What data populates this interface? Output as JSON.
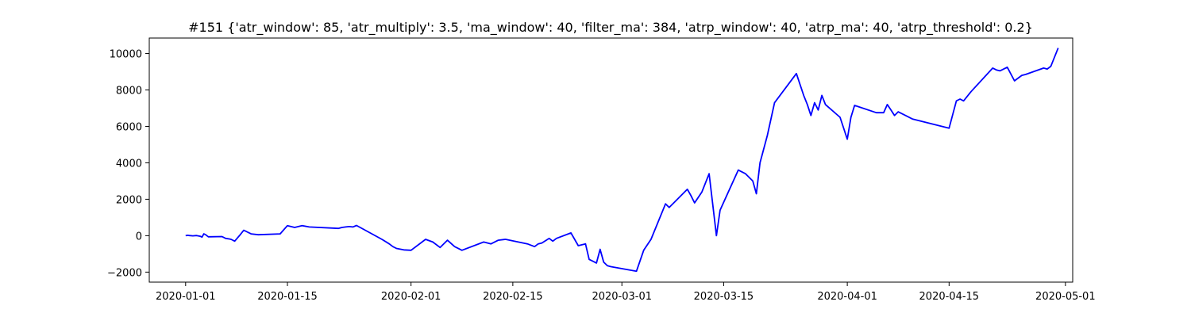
{
  "chart_data": {
    "type": "line",
    "title": "#151 {'atr_window': 85, 'atr_multiply': 3.5, 'ma_window': 40, 'filter_ma': 384, 'atrp_window': 40, 'atrp_ma': 40, 'atrp_threshold': 0.2}",
    "xlabel": "",
    "ylabel": "",
    "xlim": [
      "2019-12-27",
      "2020-05-02"
    ],
    "ylim": [
      -2550,
      10850
    ],
    "grid": false,
    "line_color": "#0000ff",
    "x_ticks": [
      "2020-01-01",
      "2020-01-15",
      "2020-02-01",
      "2020-02-15",
      "2020-03-01",
      "2020-03-15",
      "2020-04-01",
      "2020-04-15",
      "2020-05-01"
    ],
    "y_ticks": [
      -2000,
      0,
      2000,
      4000,
      6000,
      8000,
      10000
    ],
    "x": [
      "2020-01-01",
      "2020-01-01T06:00",
      "2020-01-01T12:00",
      "2020-01-02",
      "2020-01-02T12:00",
      "2020-01-03",
      "2020-01-03T06:00",
      "2020-01-03T12:00",
      "2020-01-03T18:00",
      "2020-01-04T03:00",
      "2020-01-06",
      "2020-01-06T12:00",
      "2020-01-07",
      "2020-01-07T06:00",
      "2020-01-07T18:00",
      "2020-01-08T12:00",
      "2020-01-09",
      "2020-01-10",
      "2020-01-11",
      "2020-01-14",
      "2020-01-15",
      "2020-01-16",
      "2020-01-17",
      "2020-01-18",
      "2020-01-22",
      "2020-01-22T12:00",
      "2020-01-23",
      "2020-01-23T12:00",
      "2020-01-24",
      "2020-01-24T12:00",
      "2020-01-25",
      "2020-01-28",
      "2020-01-29",
      "2020-01-29T12:00",
      "2020-01-30",
      "2020-01-31",
      "2020-02-01",
      "2020-02-03",
      "2020-02-04",
      "2020-02-05",
      "2020-02-06",
      "2020-02-07",
      "2020-02-08",
      "2020-02-11",
      "2020-02-12",
      "2020-02-13",
      "2020-02-14",
      "2020-02-17",
      "2020-02-18",
      "2020-02-18T12:00",
      "2020-02-19",
      "2020-02-20",
      "2020-02-20T12:00",
      "2020-02-21",
      "2020-02-23",
      "2020-02-24",
      "2020-02-25",
      "2020-02-25T12:00",
      "2020-02-26",
      "2020-02-26T12:00",
      "2020-02-27",
      "2020-02-27T12:00",
      "2020-02-28",
      "2020-02-28T12:00",
      "2020-03-03",
      "2020-03-04",
      "2020-03-05",
      "2020-03-07",
      "2020-03-07T12:00",
      "2020-03-10",
      "2020-03-10T12:00",
      "2020-03-11",
      "2020-03-12",
      "2020-03-13",
      "2020-03-14",
      "2020-03-14T12:00",
      "2020-03-17",
      "2020-03-18",
      "2020-03-19",
      "2020-03-19T12:00",
      "2020-03-20",
      "2020-03-21",
      "2020-03-22",
      "2020-03-25",
      "2020-03-26",
      "2020-03-26T12:00",
      "2020-03-27",
      "2020-03-27T12:00",
      "2020-03-28",
      "2020-03-28T12:00",
      "2020-03-29",
      "2020-03-31",
      "2020-04-01",
      "2020-04-01T12:00",
      "2020-04-02",
      "2020-04-05",
      "2020-04-06",
      "2020-04-06T12:00",
      "2020-04-07",
      "2020-04-07T12:00",
      "2020-04-08",
      "2020-04-10",
      "2020-04-15",
      "2020-04-16",
      "2020-04-16T12:00",
      "2020-04-17",
      "2020-04-18",
      "2020-04-21",
      "2020-04-21T12:00",
      "2020-04-22",
      "2020-04-23",
      "2020-04-24",
      "2020-04-25",
      "2020-04-25T12:00",
      "2020-04-28",
      "2020-04-28T12:00",
      "2020-04-29",
      "2020-04-29T12:00",
      "2020-04-30"
    ],
    "values": [
      0,
      20,
      10,
      -10,
      10,
      -30,
      -80,
      100,
      50,
      -60,
      -50,
      -150,
      -180,
      -200,
      -300,
      50,
      300,
      100,
      50,
      100,
      550,
      450,
      550,
      480,
      400,
      450,
      480,
      500,
      480,
      560,
      450,
      -200,
      -450,
      -600,
      -700,
      -780,
      -800,
      -200,
      -350,
      -650,
      -250,
      -600,
      -800,
      -350,
      -450,
      -250,
      -200,
      -450,
      -600,
      -450,
      -400,
      -150,
      -300,
      -150,
      150,
      -550,
      -450,
      -1300,
      -1400,
      -1500,
      -750,
      -1450,
      -1650,
      -1700,
      -1950,
      -800,
      -200,
      1750,
      1550,
      2550,
      2200,
      1800,
      2400,
      3400,
      0,
      1400,
      3600,
      3400,
      3000,
      2300,
      4000,
      5500,
      7300,
      8900,
      7700,
      7200,
      6600,
      7300,
      6900,
      7700,
      7200,
      6500,
      5300,
      6500,
      7150,
      6750,
      6750,
      7200,
      6900,
      6600,
      6800,
      6400,
      5900,
      7400,
      7500,
      7400,
      7900,
      9200,
      9100,
      9050,
      9250,
      8500,
      8800,
      8850,
      9200,
      9150,
      9300,
      9800,
      10300
    ]
  }
}
